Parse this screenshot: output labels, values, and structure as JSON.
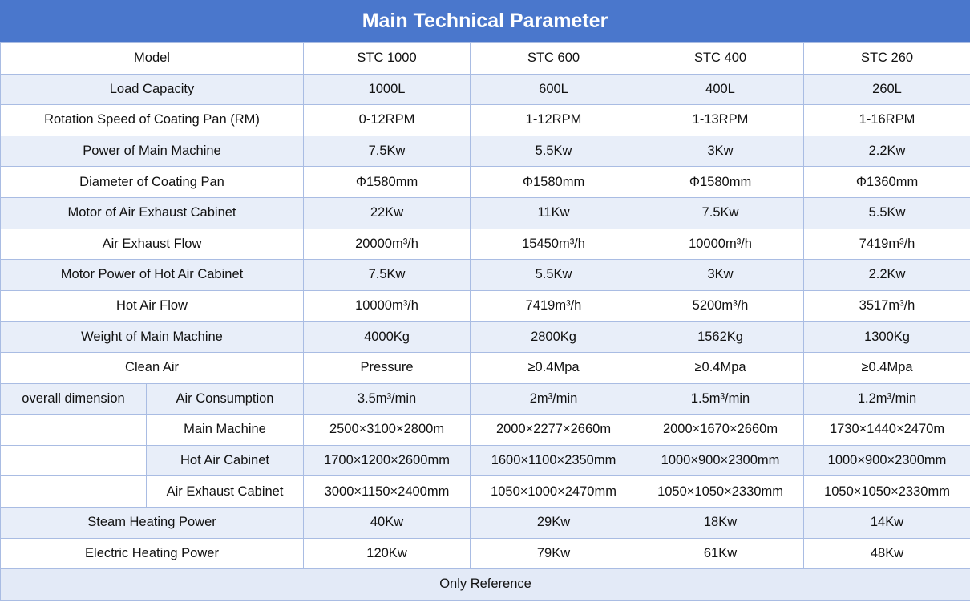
{
  "title": "Main Technical Parameter",
  "header": [
    "Model",
    "STC 1000",
    "STC 600",
    "STC 400",
    "STC 260"
  ],
  "rows": [
    {
      "label": "Load Capacity",
      "values": [
        "1000L",
        "600L",
        "400L",
        "260L"
      ]
    },
    {
      "label": "Rotation Speed of Coating Pan (RM)",
      "values": [
        "0-12RPM",
        "1-12RPM",
        "1-13RPM",
        "1-16RPM"
      ]
    },
    {
      "label": "Power of Main Machine",
      "values": [
        "7.5Kw",
        "5.5Kw",
        "3Kw",
        "2.2Kw"
      ]
    },
    {
      "label": "Diameter of Coating Pan",
      "values": [
        "Φ1580mm",
        "Φ1580mm",
        "Φ1580mm",
        "Φ1360mm"
      ]
    },
    {
      "label": "Motor of Air Exhaust Cabinet",
      "values": [
        "22Kw",
        "11Kw",
        "7.5Kw",
        "5.5Kw"
      ]
    },
    {
      "label": "Air Exhaust Flow",
      "values": [
        "20000m³/h",
        "15450m³/h",
        "10000m³/h",
        "7419m³/h"
      ]
    },
    {
      "label": "Motor Power of Hot Air Cabinet",
      "values": [
        "7.5Kw",
        "5.5Kw",
        "3Kw",
        "2.2Kw"
      ]
    },
    {
      "label": "Hot Air Flow",
      "values": [
        "10000m³/h",
        "7419m³/h",
        "5200m³/h",
        "3517m³/h"
      ]
    },
    {
      "label": "Weight of Main Machine",
      "values": [
        "4000Kg",
        "2800Kg",
        "1562Kg",
        "1300Kg"
      ]
    },
    {
      "label": "Clean Air",
      "values": [
        "Pressure",
        "≥0.4Mpa",
        "≥0.4Mpa",
        "≥0.4Mpa"
      ]
    }
  ],
  "dimension": {
    "group_label": "overall dimension",
    "rows": [
      {
        "label": "Air Consumption",
        "values": [
          "3.5m³/min",
          "2m³/min",
          "1.5m³/min",
          "1.2m³/min"
        ]
      },
      {
        "label": "Main Machine",
        "values": [
          "2500×3100×2800m",
          "2000×2277×2660m",
          "2000×1670×2660m",
          "1730×1440×2470m"
        ]
      },
      {
        "label": "Hot Air Cabinet",
        "values": [
          "1700×1200×2600mm",
          "1600×1100×2350mm",
          "1000×900×2300mm",
          "1000×900×2300mm"
        ]
      },
      {
        "label": "Air Exhaust Cabinet",
        "values": [
          "3000×1150×2400mm",
          "1050×1000×2470mm",
          "1050×1050×2330mm",
          "1050×1050×2330mm"
        ]
      }
    ]
  },
  "tail_rows": [
    {
      "label": "Steam Heating Power",
      "values": [
        "40Kw",
        "29Kw",
        "18Kw",
        "14Kw"
      ]
    },
    {
      "label": "Electric Heating Power",
      "values": [
        "120Kw",
        "79Kw",
        "61Kw",
        "48Kw"
      ]
    }
  ],
  "footer": "Only Reference"
}
